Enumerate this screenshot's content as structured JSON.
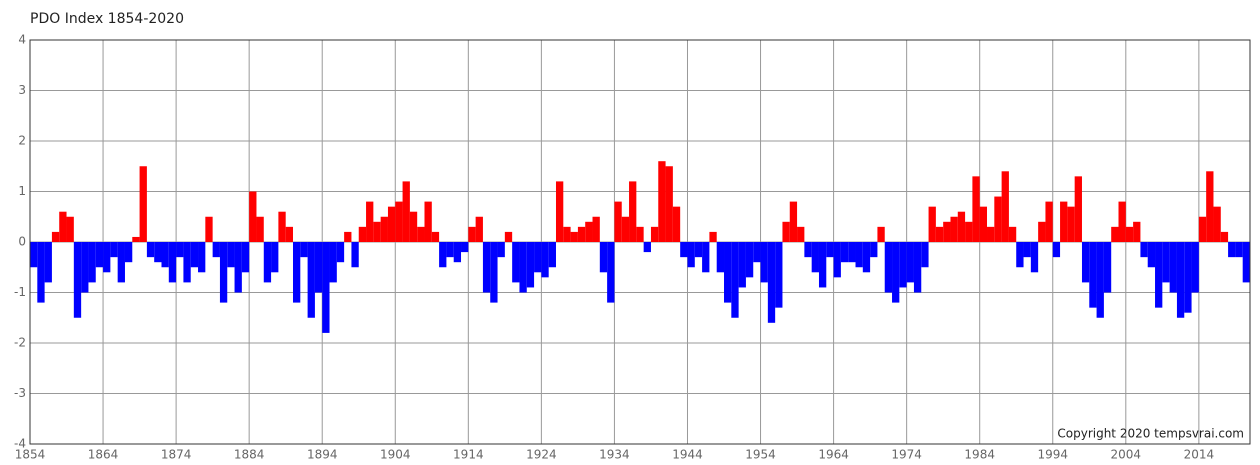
{
  "chart_data": {
    "type": "bar",
    "title": "PDO Index 1854-2020",
    "annotation": "Copyright 2020 tempsvrai.com",
    "positive_color": "#ff0000",
    "negative_color": "#0000ff",
    "grid": true,
    "xlim": [
      1854,
      2021
    ],
    "xticks": [
      1854,
      1864,
      1874,
      1884,
      1894,
      1904,
      1914,
      1924,
      1934,
      1944,
      1954,
      1964,
      1974,
      1984,
      1994,
      2004,
      2014
    ],
    "ylim": [
      -4,
      4
    ],
    "yticks": [
      -4,
      -3,
      -2,
      -1,
      0,
      1,
      2,
      3,
      4
    ],
    "x": [
      1854,
      1855,
      1856,
      1857,
      1858,
      1859,
      1860,
      1861,
      1862,
      1863,
      1864,
      1865,
      1866,
      1867,
      1868,
      1869,
      1870,
      1871,
      1872,
      1873,
      1874,
      1875,
      1876,
      1877,
      1878,
      1879,
      1880,
      1881,
      1882,
      1883,
      1884,
      1885,
      1886,
      1887,
      1888,
      1889,
      1890,
      1891,
      1892,
      1893,
      1894,
      1895,
      1896,
      1897,
      1898,
      1899,
      1900,
      1901,
      1902,
      1903,
      1904,
      1905,
      1906,
      1907,
      1908,
      1909,
      1910,
      1911,
      1912,
      1913,
      1914,
      1915,
      1916,
      1917,
      1918,
      1919,
      1920,
      1921,
      1922,
      1923,
      1924,
      1925,
      1926,
      1927,
      1928,
      1929,
      1930,
      1931,
      1932,
      1933,
      1934,
      1935,
      1936,
      1937,
      1938,
      1939,
      1940,
      1941,
      1942,
      1943,
      1944,
      1945,
      1946,
      1947,
      1948,
      1949,
      1950,
      1951,
      1952,
      1953,
      1954,
      1955,
      1956,
      1957,
      1958,
      1959,
      1960,
      1961,
      1962,
      1963,
      1964,
      1965,
      1966,
      1967,
      1968,
      1969,
      1970,
      1971,
      1972,
      1973,
      1974,
      1975,
      1976,
      1977,
      1978,
      1979,
      1980,
      1981,
      1982,
      1983,
      1984,
      1985,
      1986,
      1987,
      1988,
      1989,
      1990,
      1991,
      1992,
      1993,
      1994,
      1995,
      1996,
      1997,
      1998,
      1999,
      2000,
      2001,
      2002,
      2003,
      2004,
      2005,
      2006,
      2007,
      2008,
      2009,
      2010,
      2011,
      2012,
      2013,
      2014,
      2015,
      2016,
      2017,
      2018,
      2019,
      2020
    ],
    "values": [
      -0.5,
      -1.2,
      -0.8,
      0.2,
      0.6,
      0.5,
      -1.5,
      -1.0,
      -0.8,
      -0.5,
      -0.6,
      -0.3,
      -0.8,
      -0.4,
      0.1,
      1.5,
      -0.3,
      -0.4,
      -0.5,
      -0.8,
      -0.3,
      -0.8,
      -0.5,
      -0.6,
      0.5,
      -0.3,
      -1.2,
      -0.5,
      -1.0,
      -0.6,
      1.0,
      0.5,
      -0.8,
      -0.6,
      0.6,
      0.3,
      -1.2,
      -0.3,
      -1.5,
      -1.0,
      -1.8,
      -0.8,
      -0.4,
      0.2,
      -0.5,
      0.3,
      0.8,
      0.4,
      0.5,
      0.7,
      0.8,
      1.2,
      0.6,
      0.3,
      0.8,
      0.2,
      -0.5,
      -0.3,
      -0.4,
      -0.2,
      0.3,
      0.5,
      -1.0,
      -1.2,
      -0.3,
      0.2,
      -0.8,
      -1.0,
      -0.9,
      -0.6,
      -0.7,
      -0.5,
      1.2,
      0.3,
      0.2,
      0.3,
      0.4,
      0.5,
      -0.6,
      -1.2,
      0.8,
      0.5,
      1.2,
      0.3,
      -0.2,
      0.3,
      1.6,
      1.5,
      0.7,
      -0.3,
      -0.5,
      -0.3,
      -0.6,
      0.2,
      -0.6,
      -1.2,
      -1.5,
      -0.9,
      -0.7,
      -0.4,
      -0.8,
      -1.6,
      -1.3,
      0.4,
      0.8,
      0.3,
      -0.3,
      -0.6,
      -0.9,
      -0.3,
      -0.7,
      -0.4,
      -0.4,
      -0.5,
      -0.6,
      -0.3,
      0.3,
      -1.0,
      -1.2,
      -0.9,
      -0.8,
      -1.0,
      -0.5,
      0.7,
      0.3,
      0.4,
      0.5,
      0.6,
      0.4,
      1.3,
      0.7,
      0.3,
      0.9,
      1.4,
      0.3,
      -0.5,
      -0.3,
      -0.6,
      0.4,
      0.8,
      -0.3,
      0.8,
      0.7,
      1.3,
      -0.8,
      -1.3,
      -1.5,
      -1.0,
      0.3,
      0.8,
      0.3,
      0.4,
      -0.3,
      -0.5,
      -1.3,
      -0.8,
      -1.0,
      -1.5,
      -1.4,
      -1.0,
      0.5,
      1.4,
      0.7,
      0.2,
      -0.3,
      -0.3,
      -0.8
    ]
  }
}
